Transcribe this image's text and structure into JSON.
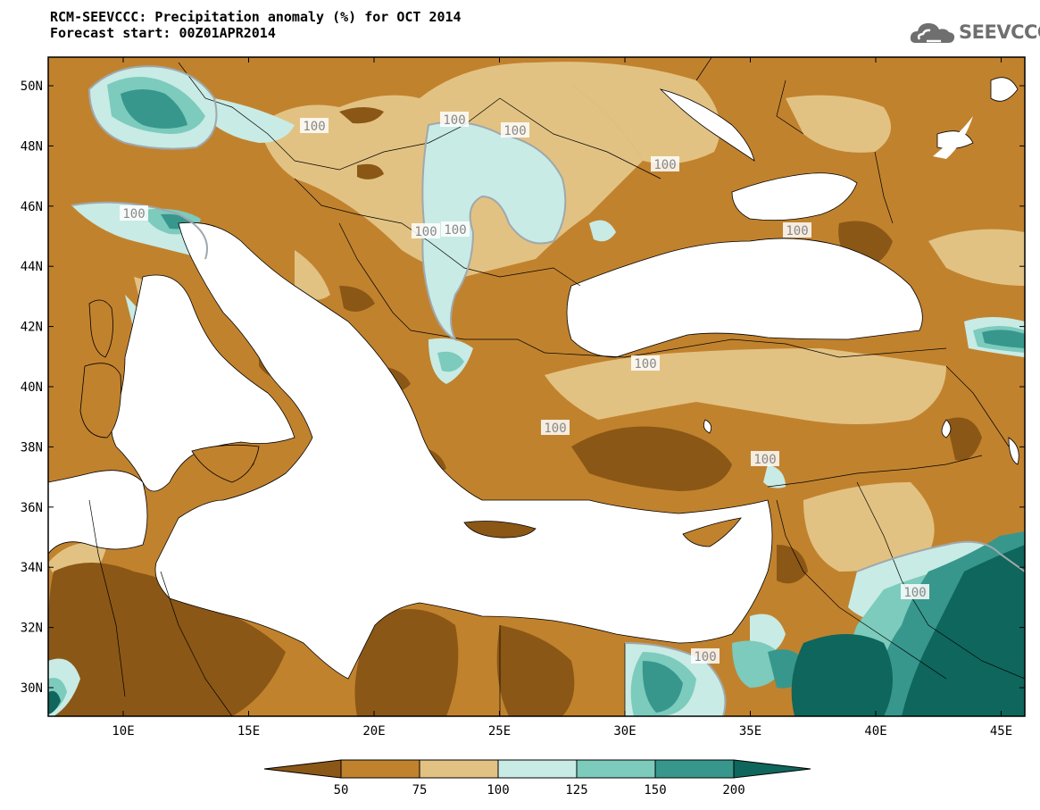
{
  "header": {
    "title": "RCM-SEEVCCC: Precipitation anomaly (%) for OCT 2014",
    "subtitle": "Forecast start: 00Z01APR2014"
  },
  "logo": {
    "text": "SEEVCCC",
    "icon": "cloud-icon"
  },
  "map": {
    "lon_ticks": [
      "10E",
      "15E",
      "20E",
      "25E",
      "30E",
      "35E",
      "40E",
      "45E"
    ],
    "lat_ticks": [
      "50N",
      "48N",
      "46N",
      "44N",
      "42N",
      "40N",
      "38N",
      "36N",
      "34N",
      "32N",
      "30N"
    ],
    "contour_labels": [
      "100",
      "100",
      "100",
      "100",
      "100",
      "100",
      "100",
      "100",
      "100",
      "100",
      "100",
      "100",
      "100"
    ]
  },
  "legend": {
    "labels": [
      "50",
      "75",
      "100",
      "125",
      "150",
      "200"
    ],
    "colors": [
      "#8b5716",
      "#c1822e",
      "#e2c283",
      "#c8ebe5",
      "#7ccbbd",
      "#37978d",
      "#0f665c"
    ]
  },
  "colors": {
    "sea": "#ffffff",
    "dry_strong": "#8b5716",
    "dry": "#c1822e",
    "dry_light": "#e2c283",
    "wet_light": "#c8ebe5",
    "wet": "#7ccbbd",
    "wet_strong": "#37978d",
    "wet_extreme": "#0f665c"
  }
}
